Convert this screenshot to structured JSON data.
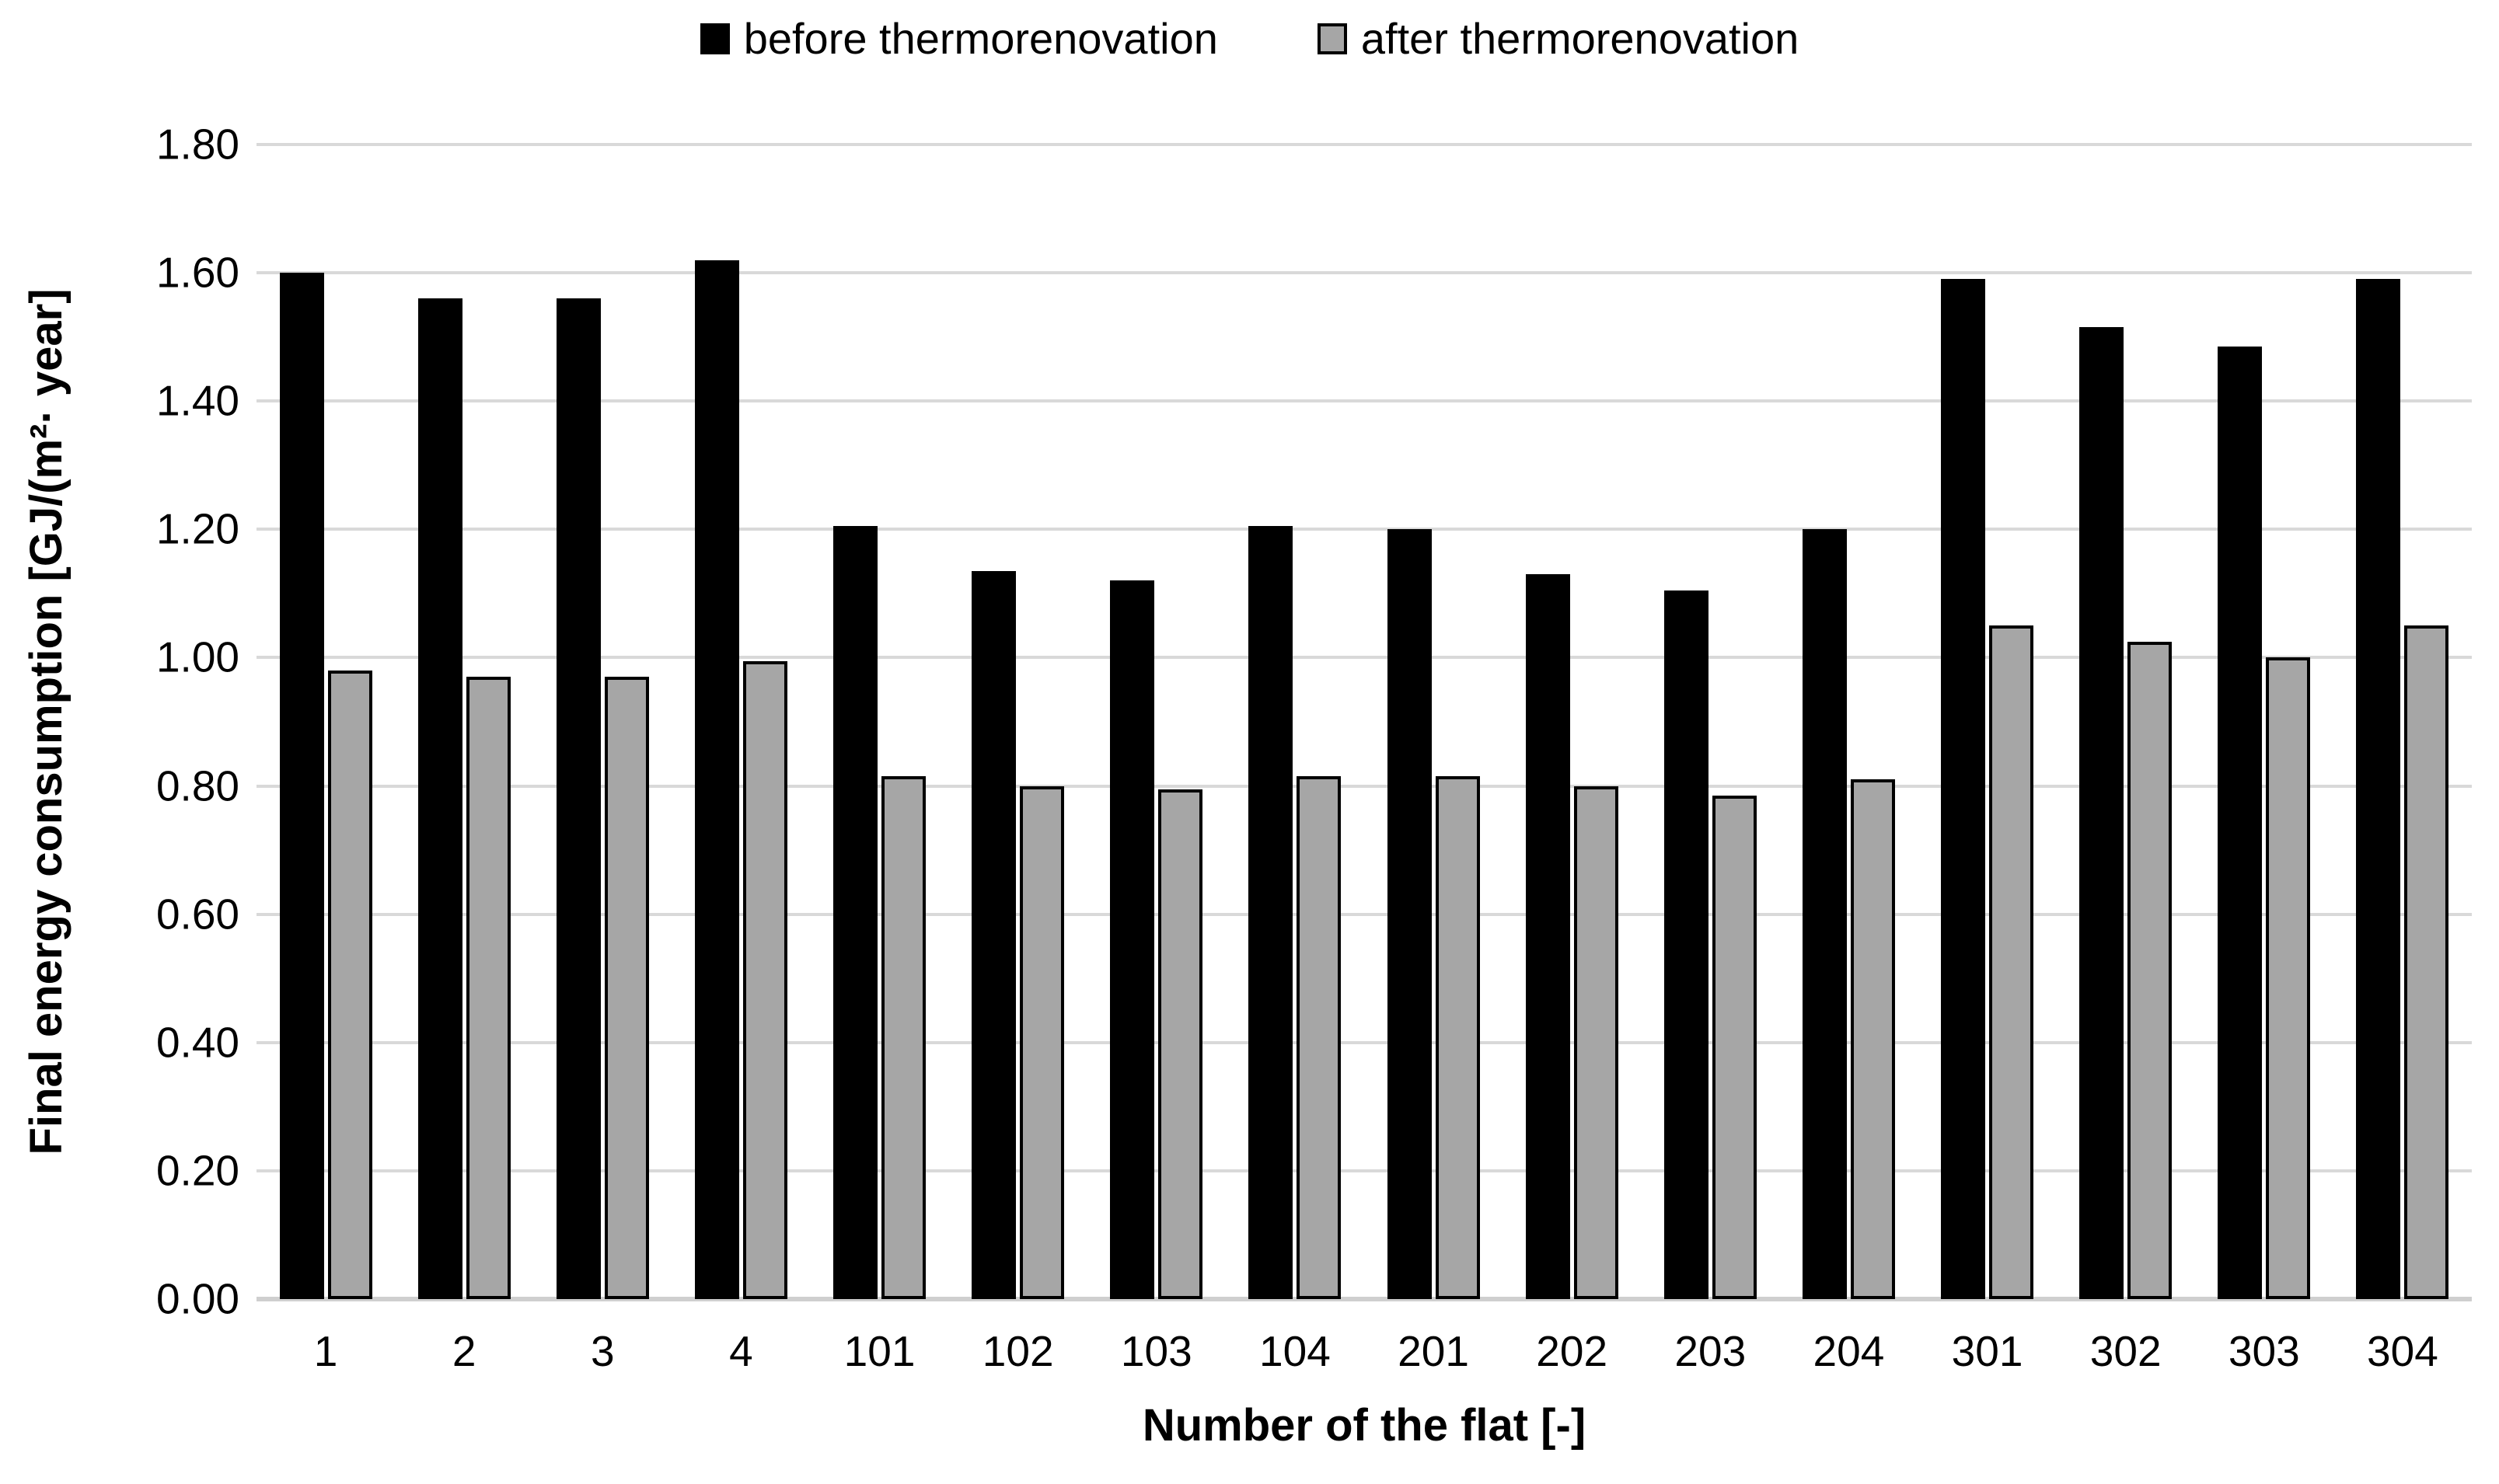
{
  "chart_data": {
    "type": "bar",
    "title": "",
    "categories": [
      "1",
      "2",
      "3",
      "4",
      "101",
      "102",
      "103",
      "104",
      "201",
      "202",
      "203",
      "204",
      "301",
      "302",
      "303",
      "304"
    ],
    "series": [
      {
        "name": "before thermorenovation",
        "color": "#000000",
        "border_color": "#000000",
        "values": [
          1.6,
          1.56,
          1.56,
          1.62,
          1.205,
          1.135,
          1.12,
          1.205,
          1.2,
          1.13,
          1.105,
          1.2,
          1.59,
          1.515,
          1.485,
          1.59
        ]
      },
      {
        "name": "after thermorenovation",
        "color": "#a6a6a6",
        "border_color": "#000000",
        "values": [
          0.98,
          0.97,
          0.97,
          0.995,
          0.815,
          0.8,
          0.795,
          0.815,
          0.815,
          0.8,
          0.785,
          0.81,
          1.05,
          1.025,
          1.0,
          1.05
        ]
      }
    ],
    "xlabel": "Number of the flat [-]",
    "ylabel": "Final energy consumption [GJ/(m²· year]",
    "ylim": [
      0,
      1.8
    ],
    "ytick_labels": [
      "0.00",
      "0.20",
      "0.40",
      "0.60",
      "0.80",
      "1.00",
      "1.20",
      "1.40",
      "1.60",
      "1.80"
    ],
    "grid": "horizontal",
    "gridline_color": "#d9d9d9",
    "axisline_color": "#cfcfcf",
    "legend_position": "top center"
  }
}
